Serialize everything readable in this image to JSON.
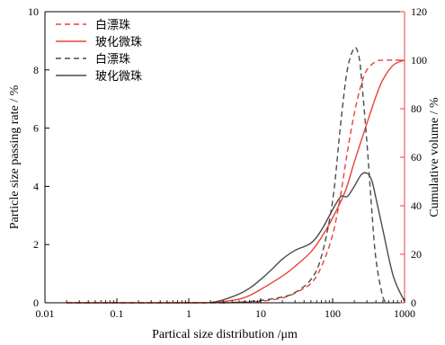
{
  "chart_data": {
    "type": "line",
    "xlabel": "Partical size distribution /μm",
    "ylabel_left": "Particle size passing rate / %",
    "ylabel_right": "Cumulative volume / %",
    "x_scale": "log",
    "xlim": [
      0.01,
      1000
    ],
    "ylim_left": [
      0,
      10
    ],
    "ylim_right": [
      0,
      120
    ],
    "x_ticks": [
      0.01,
      0.1,
      1,
      10,
      100,
      1000
    ],
    "x_tick_labels": [
      "0.01",
      "0.1",
      "1",
      "10",
      "100",
      "1000"
    ],
    "y_left_ticks": [
      0,
      2,
      4,
      6,
      8,
      10
    ],
    "y_left_tick_labels": [
      "0",
      "2",
      "4",
      "6",
      "8",
      "10"
    ],
    "y_right_ticks": [
      0,
      20,
      40,
      60,
      80,
      100,
      120
    ],
    "y_right_tick_labels": [
      "0",
      "20",
      "40",
      "60",
      "80",
      "100",
      "120"
    ],
    "grid": false,
    "legend_position": "top-left",
    "colors": {
      "red": "#e8413c",
      "dark": "#4a4a4a",
      "frame": "#000000",
      "right_axis": "#e8413c"
    },
    "series": [
      {
        "name": "白漂珠",
        "axis": "right",
        "color": "#e8413c",
        "dash": true,
        "x": [
          0.02,
          1,
          3,
          5,
          10,
          20,
          30,
          50,
          70,
          100,
          130,
          160,
          200,
          250,
          300,
          400,
          500,
          700,
          1000
        ],
        "y": [
          0,
          0,
          0,
          0.2,
          0.6,
          2,
          4,
          8,
          15,
          28,
          45,
          62,
          78,
          90,
          96,
          99.5,
          100,
          100,
          100
        ]
      },
      {
        "name": "玻化微珠",
        "axis": "right",
        "color": "#e8413c",
        "dash": false,
        "x": [
          0.02,
          1,
          2,
          3,
          5,
          7,
          10,
          20,
          30,
          50,
          70,
          100,
          150,
          200,
          300,
          400,
          500,
          700,
          1000
        ],
        "y": [
          0,
          0,
          0.1,
          0.5,
          1.5,
          3,
          5.5,
          11,
          15,
          21,
          27,
          35,
          46,
          58,
          74,
          85,
          92,
          98,
          100
        ]
      },
      {
        "name": "白漂珠",
        "axis": "left",
        "color": "#4a4a4a",
        "dash": true,
        "x": [
          3,
          5,
          10,
          20,
          30,
          50,
          70,
          100,
          130,
          160,
          200,
          230,
          250,
          300,
          350,
          400,
          500,
          600
        ],
        "y": [
          0,
          0.02,
          0.08,
          0.2,
          0.35,
          0.8,
          1.6,
          3.5,
          6.2,
          8.0,
          8.75,
          8.5,
          7.8,
          5.5,
          3.2,
          1.5,
          0.2,
          0
        ]
      },
      {
        "name": "玻化微珠",
        "axis": "left",
        "color": "#4a4a4a",
        "dash": false,
        "x": [
          2,
          3,
          5,
          7,
          10,
          15,
          20,
          30,
          50,
          70,
          100,
          130,
          160,
          200,
          250,
          300,
          350,
          400,
          500,
          700,
          1000
        ],
        "y": [
          0,
          0.1,
          0.3,
          0.5,
          0.8,
          1.2,
          1.5,
          1.8,
          2.05,
          2.5,
          3.2,
          3.65,
          3.65,
          4.0,
          4.4,
          4.45,
          4.2,
          3.6,
          2.5,
          0.9,
          0.05
        ]
      }
    ]
  }
}
